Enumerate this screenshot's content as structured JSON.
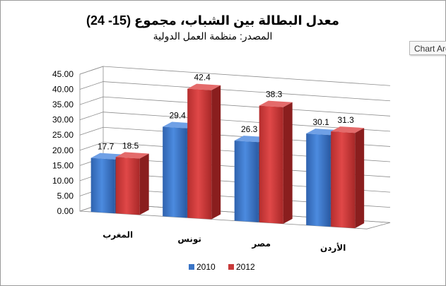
{
  "tooltip": "Chart Area",
  "chart_data": {
    "type": "bar",
    "title": "معدل البطالة بين الشباب، مجموع (15- 24)",
    "subtitle": "المصدر: منظمة العمل الدولية",
    "categories": [
      "المغرب",
      "تونس",
      "مصر",
      "الأردن"
    ],
    "series": [
      {
        "name": "2010",
        "values": [
          17.7,
          29.4,
          26.3,
          30.1
        ],
        "color": "#3A74C6"
      },
      {
        "name": "2012",
        "values": [
          18.5,
          42.4,
          38.3,
          31.3
        ],
        "color": "#C83A3A"
      }
    ],
    "ylim": [
      0,
      45
    ],
    "yticks": [
      "0.00",
      "5.00",
      "10.00",
      "15.00",
      "20.00",
      "25.00",
      "30.00",
      "35.00",
      "40.00",
      "45.00"
    ],
    "grid": true,
    "legend": "bottom"
  }
}
